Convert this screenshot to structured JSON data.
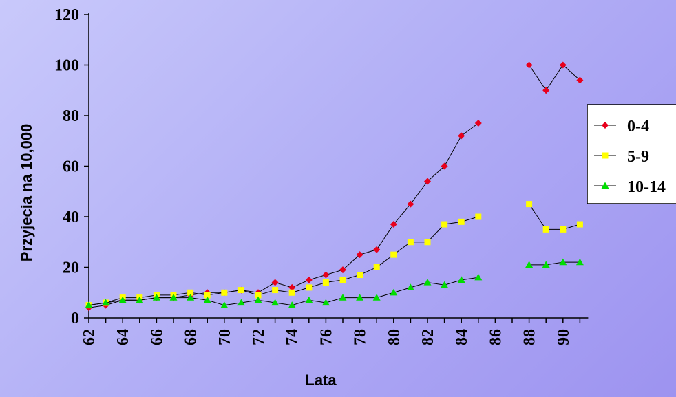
{
  "chart_data": {
    "type": "line",
    "title": "",
    "xlabel": "Lata",
    "ylabel": "Przyjecia na 10,000",
    "ylim": [
      0,
      120
    ],
    "xlim": [
      62,
      91
    ],
    "y_ticks": [
      0,
      20,
      40,
      60,
      80,
      100,
      120
    ],
    "x_tick_labels": [
      "62",
      "64",
      "66",
      "68",
      "70",
      "72",
      "74",
      "76",
      "78",
      "80",
      "82",
      "84",
      "86",
      "88",
      "90"
    ],
    "grid": false,
    "legend_position": "right",
    "series": [
      {
        "name": "0-4",
        "color": "#e8001c",
        "marker": "diamond",
        "segments": [
          {
            "x": [
              62,
              63,
              64,
              65,
              66,
              67,
              68,
              69,
              70,
              71,
              72,
              73,
              74,
              75,
              76,
              77,
              78,
              79,
              80,
              81,
              82,
              83,
              84,
              85
            ],
            "y": [
              4,
              5,
              7,
              7,
              8,
              8,
              9,
              10,
              10,
              11,
              10,
              14,
              12,
              15,
              17,
              19,
              25,
              27,
              37,
              45,
              54,
              60,
              72,
              77
            ]
          },
          {
            "x": [
              88,
              89,
              90,
              91
            ],
            "y": [
              100,
              90,
              100,
              94
            ]
          }
        ]
      },
      {
        "name": "5-9",
        "color": "#ffff00",
        "marker": "square",
        "segments": [
          {
            "x": [
              62,
              63,
              64,
              65,
              66,
              67,
              68,
              69,
              70,
              71,
              72,
              73,
              74,
              75,
              76,
              77,
              78,
              79,
              80,
              81,
              82,
              83,
              84,
              85
            ],
            "y": [
              5,
              6,
              8,
              8,
              9,
              9,
              10,
              9,
              10,
              11,
              9,
              11,
              10,
              12,
              14,
              15,
              17,
              20,
              25,
              30,
              30,
              37,
              38,
              40
            ]
          },
          {
            "x": [
              88,
              89,
              90,
              91
            ],
            "y": [
              45,
              35,
              35,
              37
            ]
          }
        ]
      },
      {
        "name": "10-14",
        "color": "#00dd00",
        "marker": "triangle",
        "segments": [
          {
            "x": [
              62,
              63,
              64,
              65,
              66,
              67,
              68,
              69,
              70,
              71,
              72,
              73,
              74,
              75,
              76,
              77,
              78,
              79,
              80,
              81,
              82,
              83,
              84,
              85
            ],
            "y": [
              5,
              6,
              7,
              7,
              8,
              8,
              8,
              7,
              5,
              6,
              7,
              6,
              5,
              7,
              6,
              8,
              8,
              8,
              10,
              12,
              14,
              13,
              15,
              16
            ]
          },
          {
            "x": [
              88,
              89,
              90,
              91
            ],
            "y": [
              21,
              21,
              22,
              22
            ]
          }
        ]
      }
    ]
  }
}
